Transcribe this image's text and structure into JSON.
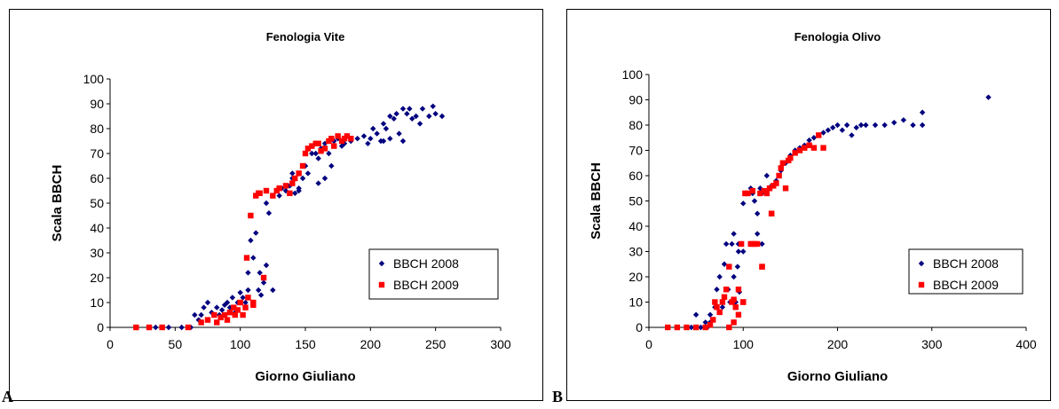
{
  "panels": [
    {
      "letter": "A"
    },
    {
      "letter": "B"
    }
  ],
  "chart_data": [
    {
      "type": "scatter",
      "title": "Fenologia Vite",
      "xlabel": "Giorno Giuliano",
      "ylabel": "Scala BBCH",
      "xlim": [
        0,
        300
      ],
      "ylim": [
        0,
        100
      ],
      "xticks": [
        0,
        50,
        100,
        150,
        200,
        250,
        300
      ],
      "yticks": [
        0,
        10,
        20,
        30,
        40,
        50,
        60,
        70,
        80,
        90,
        100
      ],
      "grid": false,
      "legend_position": "lower-right",
      "series": [
        {
          "name": "BBCH 2008",
          "color": "#00007f",
          "marker": "diamond",
          "x": [
            20,
            30,
            35,
            40,
            45,
            55,
            62,
            65,
            68,
            70,
            72,
            75,
            78,
            80,
            82,
            84,
            86,
            88,
            90,
            92,
            94,
            96,
            98,
            100,
            100,
            102,
            104,
            106,
            106,
            108,
            108,
            110,
            110,
            112,
            114,
            115,
            116,
            118,
            120,
            122,
            125,
            128,
            130,
            132,
            135,
            138,
            140,
            142,
            145,
            148,
            150,
            152,
            155,
            158,
            160,
            162,
            165,
            168,
            170,
            172,
            175,
            178,
            180,
            185,
            190,
            195,
            198,
            200,
            202,
            205,
            208,
            210,
            212,
            215,
            218,
            220,
            222,
            225,
            228,
            230,
            232,
            235,
            238,
            240,
            245,
            248,
            250,
            255,
            210,
            215,
            225,
            160,
            165,
            140,
            145,
            120
          ],
          "y": [
            0,
            0,
            0,
            0,
            0,
            0,
            0,
            5,
            3,
            5,
            8,
            10,
            6,
            5,
            8,
            5,
            7,
            9,
            10,
            8,
            12,
            6,
            10,
            10,
            14,
            12,
            10,
            15,
            22,
            35,
            45,
            10,
            28,
            38,
            15,
            22,
            13,
            18,
            25,
            46,
            15,
            55,
            53,
            56,
            55,
            57,
            60,
            54,
            55,
            60,
            65,
            62,
            70,
            70,
            68,
            72,
            74,
            70,
            65,
            75,
            76,
            73,
            74,
            75,
            76,
            77,
            74,
            76,
            80,
            78,
            75,
            82,
            80,
            85,
            84,
            86,
            78,
            88,
            86,
            88,
            84,
            85,
            82,
            88,
            85,
            89,
            86,
            85,
            75,
            76,
            75,
            58,
            60,
            62,
            56,
            50
          ]
        },
        {
          "name": "BBCH 2009",
          "color": "#ff0000",
          "marker": "square",
          "x": [
            20,
            30,
            40,
            60,
            70,
            75,
            80,
            82,
            85,
            88,
            90,
            92,
            95,
            96,
            98,
            100,
            102,
            104,
            105,
            106,
            108,
            110,
            110,
            112,
            114,
            115,
            118,
            120,
            125,
            128,
            130,
            135,
            138,
            140,
            142,
            145,
            148,
            150,
            152,
            155,
            158,
            160,
            162,
            165,
            168,
            170,
            172,
            175,
            178,
            180,
            182,
            185
          ],
          "y": [
            0,
            0,
            0,
            0,
            2,
            3,
            5,
            2,
            4,
            5,
            3,
            6,
            8,
            5,
            7,
            10,
            5,
            8,
            28,
            12,
            45,
            10,
            9,
            53,
            54,
            54,
            20,
            55,
            53,
            55,
            56,
            57,
            54,
            58,
            60,
            62,
            65,
            70,
            72,
            73,
            74,
            74,
            71,
            72,
            75,
            76,
            73,
            77,
            75,
            76,
            77,
            76
          ]
        }
      ]
    },
    {
      "type": "scatter",
      "title": "Fenologia Olivo",
      "xlabel": "Giorno Giuliano",
      "ylabel": "Scala BBCH",
      "xlim": [
        0,
        400
      ],
      "ylim": [
        0,
        100
      ],
      "xticks": [
        0,
        100,
        200,
        300,
        400
      ],
      "yticks": [
        0,
        10,
        20,
        30,
        40,
        50,
        60,
        70,
        80,
        90,
        100
      ],
      "grid": false,
      "legend_position": "lower-right",
      "series": [
        {
          "name": "BBCH 2008",
          "color": "#00007f",
          "marker": "diamond",
          "x": [
            30,
            40,
            45,
            50,
            55,
            60,
            62,
            65,
            68,
            70,
            72,
            75,
            78,
            80,
            82,
            84,
            85,
            86,
            88,
            90,
            92,
            94,
            95,
            96,
            98,
            100,
            100,
            102,
            105,
            108,
            110,
            112,
            115,
            118,
            120,
            122,
            125,
            128,
            130,
            135,
            140,
            145,
            150,
            155,
            160,
            165,
            170,
            175,
            180,
            185,
            190,
            195,
            200,
            205,
            210,
            215,
            220,
            225,
            230,
            240,
            250,
            260,
            270,
            280,
            290,
            290,
            360,
            85,
            90,
            95,
            100,
            110,
            115,
            120,
            65,
            70
          ],
          "y": [
            0,
            0,
            0,
            5,
            0,
            2,
            0,
            5,
            3,
            10,
            15,
            20,
            8,
            25,
            33,
            15,
            24,
            10,
            33,
            20,
            10,
            24,
            30,
            14,
            33,
            10,
            49,
            53,
            53,
            55,
            53,
            50,
            45,
            55,
            53,
            54,
            60,
            55,
            56,
            58,
            62,
            65,
            68,
            70,
            71,
            72,
            74,
            75,
            76,
            77,
            78,
            79,
            80,
            78,
            80,
            76,
            79,
            80,
            80,
            80,
            80,
            81,
            82,
            80,
            85,
            80,
            91,
            24,
            37,
            33,
            30,
            33,
            37,
            33,
            2,
            8
          ]
        },
        {
          "name": "BBCH 2009",
          "color": "#ff0000",
          "marker": "square",
          "x": [
            20,
            30,
            40,
            50,
            60,
            65,
            68,
            70,
            72,
            75,
            78,
            80,
            82,
            85,
            88,
            90,
            92,
            95,
            98,
            100,
            102,
            105,
            108,
            110,
            112,
            115,
            118,
            120,
            122,
            125,
            128,
            130,
            132,
            135,
            138,
            140,
            142,
            145,
            148,
            150,
            155,
            160,
            165,
            170,
            175,
            180,
            185,
            90,
            100,
            110,
            120,
            130,
            85,
            95
          ],
          "y": [
            0,
            0,
            0,
            0,
            0,
            1,
            3,
            10,
            8,
            6,
            10,
            12,
            15,
            24,
            10,
            11,
            8,
            15,
            33,
            10,
            53,
            53,
            33,
            54,
            33,
            33,
            53,
            24,
            54,
            53,
            55,
            45,
            56,
            57,
            60,
            63,
            65,
            55,
            66,
            67,
            69,
            70,
            71,
            72,
            71,
            76,
            71,
            2,
            10,
            33,
            24,
            45,
            0,
            5
          ]
        }
      ]
    }
  ]
}
